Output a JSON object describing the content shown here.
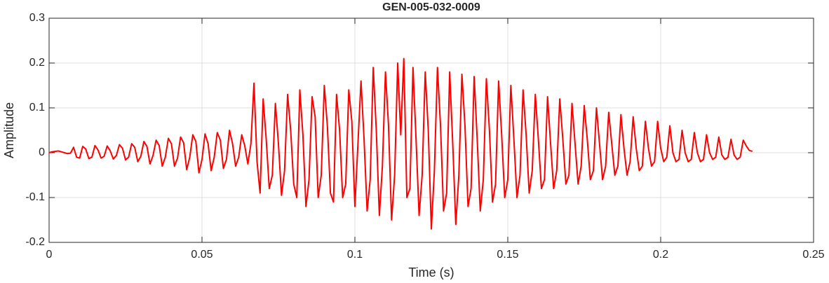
{
  "chart_data": {
    "type": "line",
    "title": "GEN-005-032-0009",
    "xlabel": "Time (s)",
    "ylabel": "Amplitude",
    "color": "#ff0000",
    "grid": true,
    "xlim": [
      0,
      0.25
    ],
    "xticks": [
      0,
      0.05,
      0.1,
      0.15,
      0.2,
      0.25
    ],
    "ylim": [
      -0.2,
      0.3
    ],
    "yticks": [
      -0.2,
      -0.1,
      0,
      0.1,
      0.2,
      0.3
    ],
    "x": [
      0,
      0.001,
      0.002,
      0.003,
      0.004,
      0.005,
      0.006,
      0.007,
      0.008,
      0.009,
      0.01,
      0.011,
      0.012,
      0.013,
      0.014,
      0.015,
      0.016,
      0.017,
      0.018,
      0.019,
      0.02,
      0.021,
      0.022,
      0.023,
      0.024,
      0.025,
      0.026,
      0.027,
      0.028,
      0.029,
      0.03,
      0.031,
      0.032,
      0.033,
      0.034,
      0.035,
      0.036,
      0.037,
      0.038,
      0.039,
      0.04,
      0.041,
      0.042,
      0.043,
      0.044,
      0.045,
      0.046,
      0.047,
      0.048,
      0.049,
      0.05,
      0.051,
      0.052,
      0.053,
      0.054,
      0.055,
      0.056,
      0.057,
      0.058,
      0.059,
      0.06,
      0.061,
      0.062,
      0.063,
      0.064,
      0.065,
      0.066,
      0.067,
      0.068,
      0.069,
      0.07,
      0.071,
      0.072,
      0.073,
      0.074,
      0.075,
      0.076,
      0.077,
      0.078,
      0.079,
      0.08,
      0.081,
      0.082,
      0.083,
      0.084,
      0.085,
      0.086,
      0.087,
      0.088,
      0.089,
      0.09,
      0.091,
      0.092,
      0.093,
      0.094,
      0.095,
      0.096,
      0.097,
      0.098,
      0.099,
      0.1,
      0.101,
      0.102,
      0.103,
      0.104,
      0.105,
      0.106,
      0.107,
      0.108,
      0.109,
      0.11,
      0.111,
      0.112,
      0.113,
      0.114,
      0.115,
      0.116,
      0.117,
      0.118,
      0.119,
      0.12,
      0.121,
      0.122,
      0.123,
      0.124,
      0.125,
      0.126,
      0.127,
      0.128,
      0.129,
      0.13,
      0.131,
      0.132,
      0.133,
      0.134,
      0.135,
      0.136,
      0.137,
      0.138,
      0.139,
      0.14,
      0.141,
      0.142,
      0.143,
      0.144,
      0.145,
      0.146,
      0.147,
      0.148,
      0.149,
      0.15,
      0.151,
      0.152,
      0.153,
      0.154,
      0.155,
      0.156,
      0.157,
      0.158,
      0.159,
      0.16,
      0.161,
      0.162,
      0.163,
      0.164,
      0.165,
      0.166,
      0.167,
      0.168,
      0.169,
      0.17,
      0.171,
      0.172,
      0.173,
      0.174,
      0.175,
      0.176,
      0.177,
      0.178,
      0.179,
      0.18,
      0.181,
      0.182,
      0.183,
      0.184,
      0.185,
      0.186,
      0.187,
      0.188,
      0.189,
      0.19,
      0.191,
      0.192,
      0.193,
      0.194,
      0.195,
      0.196,
      0.197,
      0.198,
      0.199,
      0.2,
      0.201,
      0.202,
      0.203,
      0.204,
      0.205,
      0.206,
      0.207,
      0.208,
      0.209,
      0.21,
      0.211,
      0.212,
      0.213,
      0.214,
      0.215,
      0.216,
      0.217,
      0.218,
      0.219,
      0.22,
      0.221,
      0.222,
      0.223,
      0.224,
      0.225,
      0.226,
      0.227,
      0.228,
      0.229,
      0.23
    ],
    "values": [
      0,
      0.002,
      0.003,
      0.004,
      0.002,
      0,
      -0.002,
      -0.001,
      0.012,
      -0.01,
      -0.012,
      0.014,
      0.008,
      -0.013,
      -0.01,
      0.016,
      0.006,
      -0.012,
      -0.008,
      0.015,
      0.004,
      -0.014,
      -0.006,
      0.018,
      0.01,
      -0.016,
      -0.01,
      0.02,
      0.012,
      -0.02,
      -0.008,
      0.025,
      0.014,
      -0.025,
      -0.006,
      0.028,
      0.016,
      -0.03,
      -0.01,
      0.032,
      0.02,
      -0.03,
      -0.012,
      0.035,
      0.022,
      -0.038,
      -0.01,
      0.04,
      0.025,
      -0.045,
      -0.015,
      0.042,
      0.02,
      -0.04,
      -0.01,
      0.045,
      0.028,
      -0.035,
      -0.015,
      0.05,
      0.02,
      -0.03,
      -0.01,
      0.04,
      0.015,
      -0.025,
      0.02,
      0.155,
      -0.02,
      -0.09,
      0.12,
      0.03,
      -0.08,
      -0.05,
      0.11,
      0.02,
      -0.095,
      -0.04,
      0.13,
      0.05,
      -0.07,
      -0.1,
      0.14,
      0.04,
      -0.12,
      -0.06,
      0.125,
      0.08,
      -0.1,
      -0.05,
      0.15,
      0.06,
      -0.09,
      -0.11,
      0.13,
      0.05,
      -0.1,
      -0.07,
      0.14,
      0.07,
      -0.12,
      0.02,
      0.16,
      0.03,
      -0.13,
      -0.06,
      0.19,
      0.05,
      -0.14,
      -0.03,
      0.18,
      0.06,
      -0.15,
      -0.05,
      0.2,
      0.04,
      0.21,
      -0.1,
      -0.08,
      0.19,
      0.03,
      -0.14,
      -0.05,
      0.18,
      0.05,
      -0.17,
      -0.04,
      0.19,
      0.06,
      -0.13,
      -0.09,
      0.18,
      0.02,
      -0.16,
      -0.05,
      0.175,
      0.06,
      -0.12,
      -0.08,
      0.17,
      0.03,
      -0.13,
      -0.06,
      0.165,
      0.05,
      -0.11,
      -0.07,
      0.16,
      0.04,
      -0.1,
      -0.06,
      0.15,
      0.03,
      -0.1,
      -0.05,
      0.14,
      0.04,
      -0.09,
      -0.04,
      0.13,
      0.03,
      -0.08,
      -0.06,
      0.125,
      0.02,
      -0.08,
      -0.04,
      0.12,
      0.03,
      -0.07,
      -0.05,
      0.11,
      0.02,
      -0.07,
      -0.03,
      0.105,
      0.03,
      -0.06,
      -0.04,
      0.1,
      0.02,
      -0.06,
      -0.03,
      0.09,
      0.02,
      -0.05,
      -0.03,
      0.085,
      0.01,
      -0.05,
      -0.02,
      0.08,
      0.01,
      -0.04,
      -0.03,
      0.07,
      0.01,
      -0.03,
      -0.02,
      0.07,
      0.01,
      -0.02,
      -0.01,
      0.06,
      0,
      -0.02,
      -0.015,
      0.05,
      0,
      -0.02,
      -0.015,
      0.045,
      0,
      -0.02,
      -0.015,
      0.04,
      0,
      -0.015,
      -0.01,
      0.035,
      -0.005,
      -0.015,
      -0.01,
      0.03,
      -0.005,
      -0.015,
      -0.01,
      0.028,
      0.015,
      0.005,
      0.003
    ]
  }
}
